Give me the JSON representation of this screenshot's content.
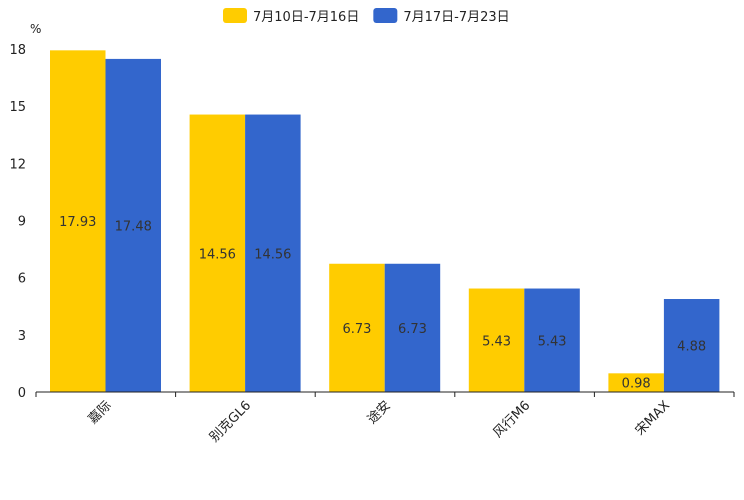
{
  "chart_data": {
    "type": "bar",
    "title": "",
    "xlabel": "",
    "ylabel": "%",
    "ylim": [
      0,
      18
    ],
    "yticks": [
      0,
      3,
      6,
      9,
      12,
      15,
      18
    ],
    "grid": false,
    "legend_position": "top-center",
    "categories": [
      "嘉际",
      "别克GL6",
      "途安",
      "风行M6",
      "宋MAX"
    ],
    "series": [
      {
        "name": "7月10日-7月16日",
        "color": "#ffcc00",
        "values": [
          17.93,
          14.56,
          6.73,
          5.43,
          0.98
        ]
      },
      {
        "name": "7月17日-7月23日",
        "color": "#3366cc",
        "values": [
          17.48,
          14.56,
          6.73,
          5.43,
          4.88
        ]
      }
    ]
  }
}
